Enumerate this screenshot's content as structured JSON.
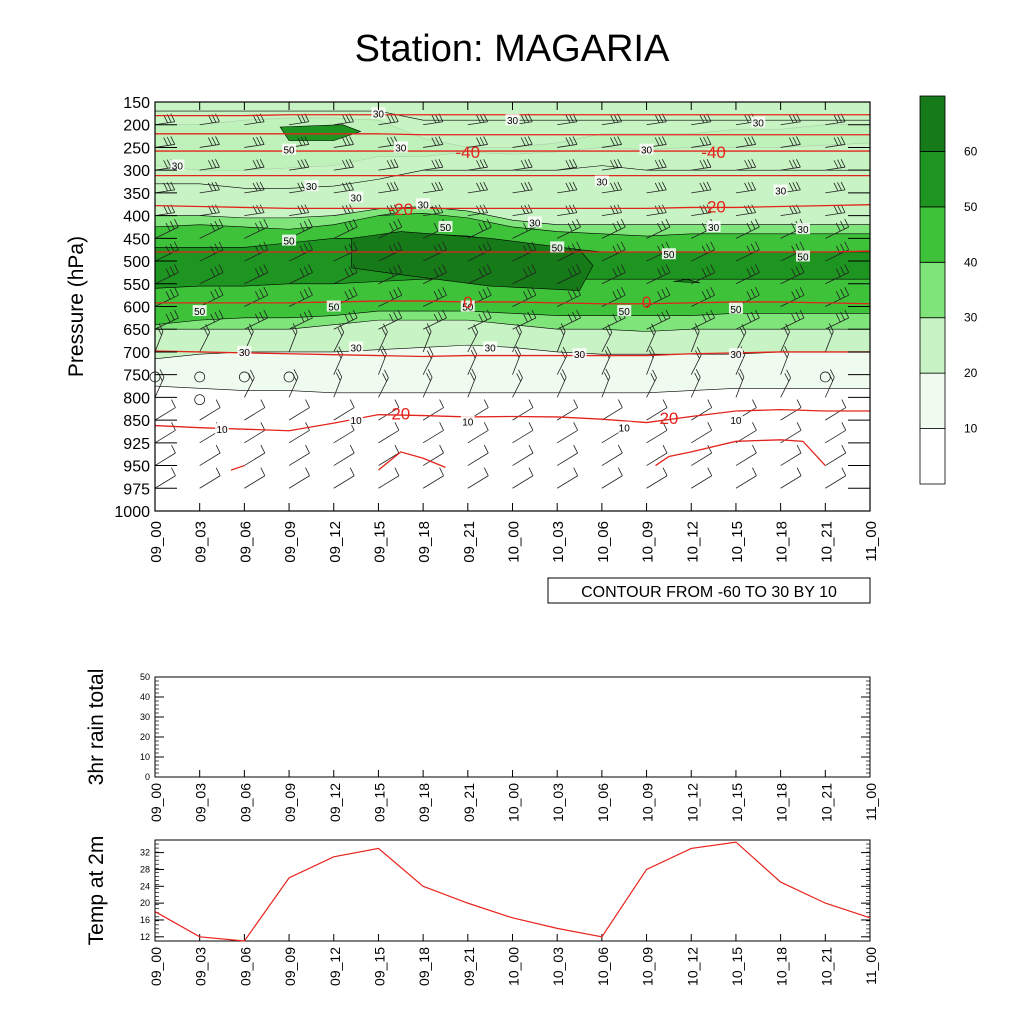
{
  "title": "Station: MAGARIA",
  "time_labels": [
    "09_00",
    "09_03",
    "09_06",
    "09_09",
    "09_12",
    "09_15",
    "09_18",
    "09_21",
    "10_00",
    "10_03",
    "10_06",
    "10_09",
    "10_12",
    "10_15",
    "10_18",
    "10_21",
    "11_00"
  ],
  "chart_data": [
    {
      "type": "heatmap",
      "name": "wind speed contour with temperature contours and wind barbs",
      "ylabel": "Pressure (hPa)",
      "pressure_levels": [
        150,
        200,
        250,
        300,
        350,
        400,
        450,
        500,
        550,
        600,
        650,
        700,
        750,
        800,
        850,
        925,
        950,
        975,
        1000
      ],
      "footnote": "CONTOUR FROM -60 TO 30 BY 10",
      "colorbar": {
        "levels": [
          10,
          20,
          30,
          40,
          50,
          60
        ],
        "colors": [
          "#ffffff",
          "#f0fbef",
          "#c8f3c4",
          "#7fe57a",
          "#3dc23a",
          "#1e9520",
          "#157a17"
        ]
      },
      "speed_labels": [
        {
          "t": 5,
          "p": 175,
          "v": "30"
        },
        {
          "t": 8,
          "p": 190,
          "v": "30"
        },
        {
          "t": 3,
          "p": 255,
          "v": "50"
        },
        {
          "t": 5.5,
          "p": 250,
          "v": "30"
        },
        {
          "t": 13.5,
          "p": 195,
          "v": "30"
        },
        {
          "t": 11,
          "p": 255,
          "v": "30"
        },
        {
          "t": 0.5,
          "p": 290,
          "v": "30"
        },
        {
          "t": 3.5,
          "p": 335,
          "v": "30"
        },
        {
          "t": 10,
          "p": 325,
          "v": "30"
        },
        {
          "t": 14,
          "p": 345,
          "v": "30"
        },
        {
          "t": 4.5,
          "p": 360,
          "v": "30"
        },
        {
          "t": 6,
          "p": 375,
          "v": "30"
        },
        {
          "t": 8.5,
          "p": 415,
          "v": "30"
        },
        {
          "t": 12.5,
          "p": 425,
          "v": "30"
        },
        {
          "t": 14.5,
          "p": 430,
          "v": "30"
        },
        {
          "t": 3,
          "p": 455,
          "v": "50"
        },
        {
          "t": 6.5,
          "p": 425,
          "v": "50"
        },
        {
          "t": 9,
          "p": 470,
          "v": "50"
        },
        {
          "t": 11.5,
          "p": 485,
          "v": "50"
        },
        {
          "t": 14.5,
          "p": 490,
          "v": "50"
        },
        {
          "t": 1,
          "p": 610,
          "v": "50"
        },
        {
          "t": 4,
          "p": 600,
          "v": "50"
        },
        {
          "t": 7,
          "p": 600,
          "v": "50"
        },
        {
          "t": 10.5,
          "p": 610,
          "v": "50"
        },
        {
          "t": 13,
          "p": 605,
          "v": "50"
        },
        {
          "t": 2,
          "p": 700,
          "v": "30"
        },
        {
          "t": 4.5,
          "p": 690,
          "v": "30"
        },
        {
          "t": 7.5,
          "p": 690,
          "v": "30"
        },
        {
          "t": 9.5,
          "p": 705,
          "v": "30"
        },
        {
          "t": 13,
          "p": 705,
          "v": "30"
        },
        {
          "t": 1.5,
          "p": 880,
          "v": "10"
        },
        {
          "t": 4.5,
          "p": 850,
          "v": "10"
        },
        {
          "t": 7,
          "p": 855,
          "v": "10"
        },
        {
          "t": 10.5,
          "p": 875,
          "v": "10"
        },
        {
          "t": 13,
          "p": 850,
          "v": "10"
        }
      ],
      "temperature_labels": [
        {
          "t": 7,
          "p": 260,
          "v": "-40"
        },
        {
          "t": 12.5,
          "p": 260,
          "v": "-40"
        },
        {
          "t": 5.5,
          "p": 385,
          "v": "-20"
        },
        {
          "t": 12.5,
          "p": 380,
          "v": "-20"
        },
        {
          "t": 7,
          "p": 590,
          "v": "0"
        },
        {
          "t": 11,
          "p": 590,
          "v": "0"
        },
        {
          "t": 5.5,
          "p": 835,
          "v": "20"
        },
        {
          "t": 11.5,
          "p": 845,
          "v": "20"
        }
      ],
      "temperature_contours": [
        {
          "value": -50,
          "p": [
            180,
            180,
            180,
            178,
            178,
            178,
            178,
            178,
            178,
            178,
            178,
            178,
            178,
            178,
            178,
            178,
            178
          ]
        },
        {
          "value": -45,
          "p": [
            220,
            220,
            220,
            220,
            220,
            220,
            222,
            222,
            222,
            222,
            222,
            222,
            222,
            222,
            222,
            222,
            222
          ]
        },
        {
          "value": -40,
          "p": [
            258,
            258,
            258,
            258,
            258,
            258,
            258,
            258,
            258,
            258,
            258,
            258,
            258,
            258,
            258,
            258,
            258
          ]
        },
        {
          "value": -30,
          "p": [
            312,
            312,
            312,
            312,
            312,
            312,
            312,
            312,
            312,
            312,
            312,
            312,
            312,
            312,
            312,
            312,
            312
          ]
        },
        {
          "value": -20,
          "p": [
            378,
            380,
            382,
            384,
            384,
            384,
            384,
            384,
            384,
            384,
            384,
            384,
            382,
            382,
            380,
            378,
            376
          ]
        },
        {
          "value": -10,
          "p": [
            480,
            480,
            480,
            480,
            480,
            480,
            480,
            480,
            480,
            480,
            480,
            480,
            480,
            480,
            480,
            480,
            478
          ]
        },
        {
          "value": 0,
          "p": [
            592,
            592,
            592,
            592,
            590,
            588,
            588,
            590,
            590,
            592,
            594,
            594,
            592,
            590,
            590,
            592,
            594
          ]
        },
        {
          "value": 10,
          "p": [
            698,
            700,
            702,
            704,
            706,
            708,
            710,
            708,
            708,
            708,
            708,
            708,
            704,
            702,
            700,
            700,
            700
          ]
        },
        {
          "value": 20,
          "p": [
            868,
            875,
            880,
            885,
            860,
            838,
            840,
            843,
            842,
            843,
            848,
            858,
            842,
            830,
            827,
            830,
            830
          ]
        }
      ],
      "surface_segments": [
        [
          [
            1.7,
            955
          ],
          [
            2,
            950
          ]
        ],
        [
          [
            5,
            955
          ],
          [
            5.5,
            935
          ],
          [
            6,
            942
          ],
          [
            6.5,
            952
          ]
        ],
        [
          [
            11.2,
            950
          ],
          [
            11.5,
            940
          ],
          [
            12,
            935
          ],
          [
            13,
            920
          ],
          [
            14,
            915
          ],
          [
            14.5,
            920
          ],
          [
            15,
            950
          ]
        ]
      ],
      "calm_points": [
        [
          0,
          755
        ],
        [
          1,
          755
        ],
        [
          2,
          755
        ],
        [
          3,
          755
        ],
        [
          1,
          805
        ],
        [
          15,
          755
        ]
      ]
    },
    {
      "type": "line",
      "ylabel": "3hr rain total",
      "ylim": [
        0,
        50
      ],
      "yticks": [
        0,
        10,
        20,
        30,
        40,
        50
      ],
      "series": [
        {
          "name": "3hr rain total",
          "values": [
            0,
            0,
            0,
            0,
            0,
            0,
            0,
            0,
            0,
            0,
            0,
            0,
            0,
            0,
            0,
            0,
            0
          ]
        }
      ]
    },
    {
      "type": "line",
      "ylabel": "Temp at 2m",
      "ylim": [
        11,
        35
      ],
      "yticks": [
        12,
        16,
        20,
        24,
        28,
        32
      ],
      "series": [
        {
          "name": "Temp at 2m",
          "color": "#e8231d",
          "values": [
            18,
            12,
            11,
            26,
            31,
            33,
            24,
            20,
            16.5,
            14,
            12,
            28,
            33,
            34.5,
            25,
            20,
            16.5
          ]
        }
      ]
    }
  ]
}
